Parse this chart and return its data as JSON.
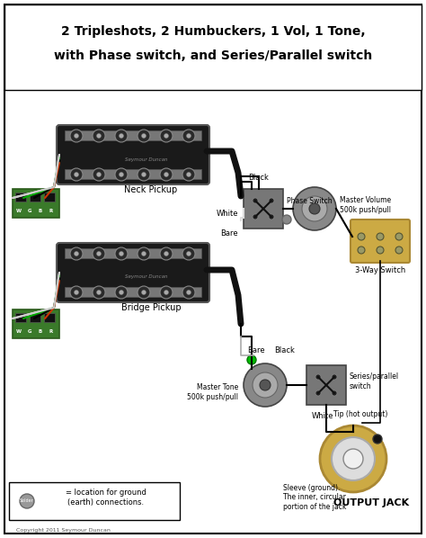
{
  "title_line1": "2 Tripleshots, 2 Humbuckers, 1 Vol, 1 Tone,",
  "title_line2": "with Phase switch, and Series/Parallel switch",
  "bg_color": "#ffffff",
  "border_color": "#000000",
  "labels": {
    "pickup_label_neck": "Neck Pickup",
    "pickup_label_bridge": "Bridge Pickup",
    "black": "Black",
    "white": "White",
    "bare": "Bare",
    "phase_switch": "Phase Switch",
    "master_volume": "Master Volume\n500k push/pull",
    "three_way": "3-Way Switch",
    "master_tone": "Master Tone\n500k push/pull",
    "series_parallel": "Series/parallel\nswitch",
    "tip": "Tip (hot output)",
    "sleeve": "Sleeve (ground).\nThe inner, circular\nportion of the jack",
    "output_jack": "OUTPUT JACK",
    "wgbr": "W G B R",
    "solder_label": "= location for ground\n(earth) connections.",
    "copyright": "Copyright 2011 Seymour Duncan",
    "solder_dot_text": "Solder"
  },
  "wire_colors": {
    "black": "#000000",
    "white": "#eeeeee",
    "green": "#00aa00",
    "red": "#cc0000",
    "bare": "#aaaaaa",
    "yellow_switch": "#ccaa00"
  },
  "component_colors": {
    "pickup_body": "#1a1a1a",
    "pickup_chrome": "#888888",
    "tripleshotboard": "#3a7a2a",
    "pot_body": "#888888",
    "pot_shaft": "#555555",
    "switch_body": "#333333",
    "switch_3way": "#ccaa44",
    "jack_outer": "#ccaa44",
    "jack_inner": "#dddddd",
    "jack_tip": "#111111"
  }
}
